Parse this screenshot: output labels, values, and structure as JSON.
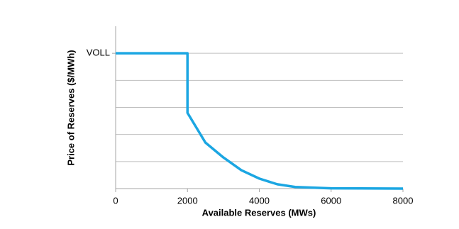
{
  "chart_data": {
    "type": "line",
    "x_label": "Available Reserves (MWs)",
    "y_label": "Price of Reserves ($/MWh)",
    "x": [
      0,
      2000,
      2000,
      2500,
      3000,
      3500,
      4000,
      4500,
      5000,
      6000,
      8000
    ],
    "series": [
      {
        "color": "#1ba6e2",
        "values": [
          5,
          5,
          2.8,
          1.7,
          1.15,
          0.68,
          0.37,
          0.16,
          0.06,
          0.01,
          0
        ]
      }
    ],
    "xlim": [
      0,
      8000
    ],
    "xticks": [
      0,
      2000,
      4000,
      6000,
      8000
    ],
    "ylim": [
      0,
      6
    ],
    "yticks": [
      {
        "value": 5,
        "label": "VOLL"
      }
    ],
    "ygrid": [
      1,
      2,
      3,
      4,
      5
    ]
  }
}
